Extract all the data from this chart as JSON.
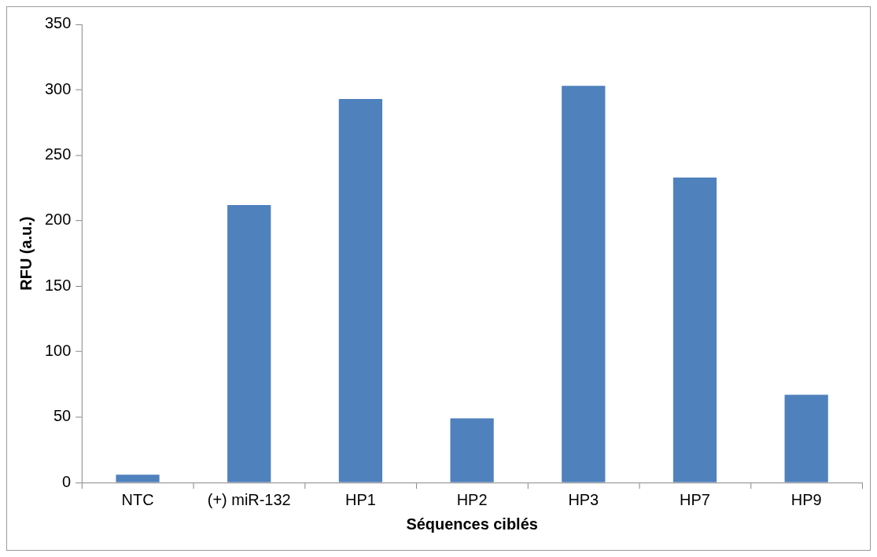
{
  "chart_data": {
    "type": "bar",
    "xlabel": "Séquences ciblés",
    "ylabel": "RFU (a.u.)",
    "categories": [
      "NTC",
      "(+) miR-132",
      "HP1",
      "HP2",
      "HP3",
      "HP7",
      "HP9"
    ],
    "values": [
      6,
      212,
      293,
      49,
      303,
      233,
      67
    ],
    "color": "#4f81bd",
    "ylim": [
      0,
      350
    ],
    "yticks": [
      0,
      50,
      100,
      150,
      200,
      250,
      300,
      350
    ],
    "grid": false,
    "legend": false
  }
}
